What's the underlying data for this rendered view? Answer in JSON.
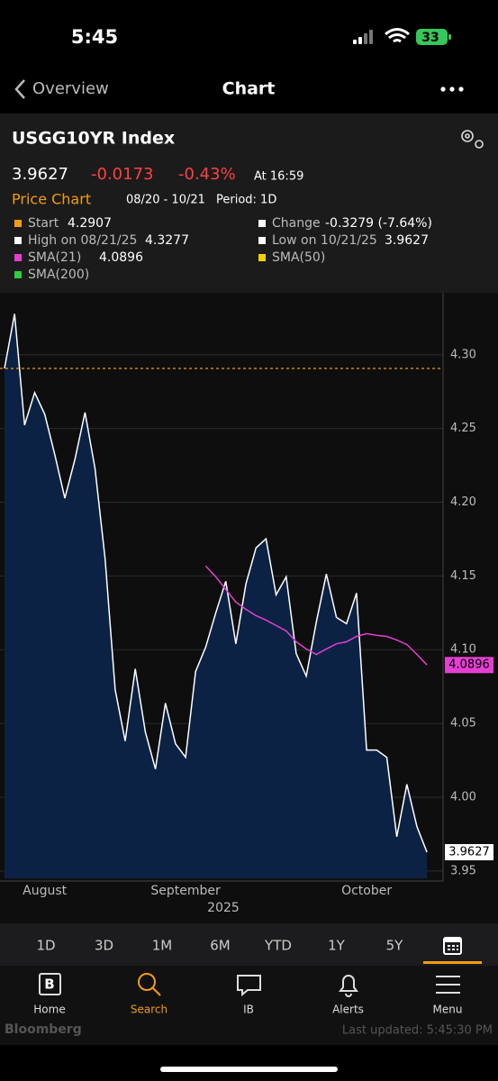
{
  "status_bar": {
    "time": "5:45",
    "battery": "33"
  },
  "nav": {
    "back": "Overview",
    "title": "Chart"
  },
  "header": {
    "title": "USGG10YR Index",
    "change": "-0.0173",
    "change_pct": "-0.43%",
    "time": "At 16:59"
  },
  "chart_header": {
    "title": "Price Chart",
    "range": "08/20 - 10/21",
    "period": "Period: 1D"
  },
  "legend": {
    "start": "Start",
    "change": "Change",
    "change_value": "-0.3279 (-7.64%)",
    "high": "High on 08/21/25",
    "low": "Low on 10/21/25",
    "sma50": "SMA(50)",
    "sma200": "SMA(200)",
    "start_color": "#f39c12",
    "high_color": "#ffffff",
    "sma21_color": "#e43fd2",
    "sma200_color": "#2ecc40",
    "change_color": "#ffffff",
    "low_color": "#ffffff",
    "sma50_color": "#f5d000"
  },
  "chart_data": {
    "type": "area",
    "categories": [
      null,
      null,
      null,
      null,
      "August",
      null,
      null,
      null,
      null,
      null,
      null,
      null,
      null,
      null,
      null,
      null,
      null,
      null,
      "September",
      null,
      null,
      null,
      null,
      null,
      null,
      null,
      null,
      null,
      null,
      null,
      null,
      null,
      null,
      null,
      null,
      null,
      "October",
      null,
      null,
      null,
      null,
      null,
      null
    ],
    "series": [
      {
        "color": "#ffffff",
        "fill": "#0b2244",
        "values": [
          4.2907,
          4.3277,
          4.2523,
          4.2743,
          4.2596,
          4.2321,
          4.2027,
          4.229,
          4.2608,
          4.2229,
          4.1617,
          4.0729,
          4.0381,
          4.087,
          4.0442,
          4.0191,
          4.0638,
          4.0362,
          4.027,
          4.0852,
          4.1017,
          4.125,
          4.1464,
          4.104,
          4.1446,
          4.169,
          4.1752,
          4.1372,
          4.1494,
          4.0974,
          4.0821,
          4.1189,
          4.1513,
          4.1219,
          4.1176,
          4.1384,
          4.032,
          4.032,
          4.027,
          3.9732,
          4.0087,
          3.98,
          3.9627
        ]
      },
      {
        "name": "SMA(21)",
        "color": "#e43fd2",
        "values": [
          null,
          null,
          null,
          null,
          null,
          null,
          null,
          null,
          null,
          null,
          null,
          null,
          null,
          null,
          null,
          null,
          null,
          null,
          null,
          null,
          4.1568,
          4.1494,
          4.1409,
          4.1323,
          4.1274,
          4.1231,
          4.1201,
          4.1164,
          4.1127,
          4.1054,
          4.1005,
          4.0968,
          4.1005,
          4.104,
          4.1054,
          4.109,
          4.1109,
          4.1097,
          4.109,
          4.1066,
          4.1035,
          4.0968,
          4.0896
        ]
      }
    ],
    "ylim": [
      3.945,
      4.342
    ],
    "yticks": [
      3.95,
      {
        "value": 4,
        "label": "4.00"
      },
      4.05,
      {
        "value": 4.1,
        "label": "4.10"
      },
      4.15,
      {
        "value": 4.2,
        "label": "4.20"
      },
      4.25,
      {
        "value": 4.3,
        "label": "4.30"
      }
    ],
    "grid": true,
    "xlabel": "2025",
    "start_line_color": "#f39c12"
  },
  "periods": [
    "1D",
    "3D",
    "1M",
    "6M",
    "YTD",
    "1Y",
    "5Y"
  ],
  "tabs": [
    "Home",
    "Search",
    "IB",
    "Alerts",
    "Menu"
  ],
  "footer": {
    "brand": "Bloomberg",
    "updated": "Last updated: 5:45:30 PM"
  }
}
